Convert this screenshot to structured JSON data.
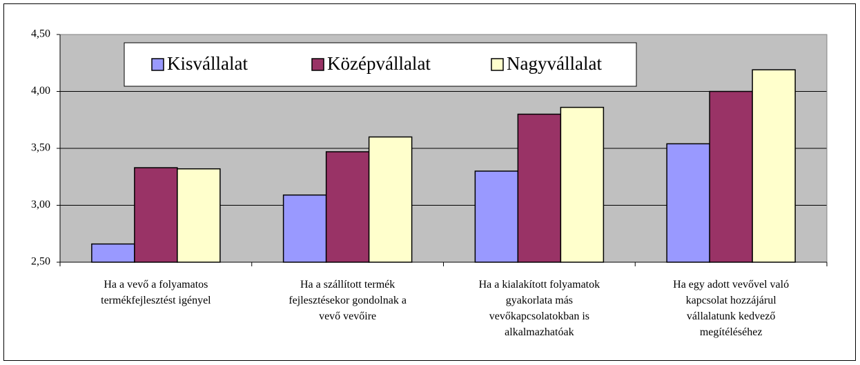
{
  "chart_data": {
    "type": "bar",
    "categories": [
      "Ha a vevő a folyamatos\ntermékfejlesztést igényel",
      "Ha a szállított termék\nfejlesztésekor gondolnak a\nvevő vevőire",
      "Ha a kialakított folyamatok\ngyakorlata más\nvevőkapcsolatokban is\nalkalmazhatóak",
      "Ha egy adott vevővel való\nkapcsolat hozzájárul\nvállalatunk kedvező\nmegítéléséhez"
    ],
    "series": [
      {
        "name": "Kisvállalat",
        "color": "#9999ff",
        "values": [
          2.66,
          3.09,
          3.3,
          3.54
        ]
      },
      {
        "name": "Középvállalat",
        "color": "#993366",
        "values": [
          3.33,
          3.47,
          3.8,
          4.0
        ]
      },
      {
        "name": "Nagyvállalat",
        "color": "#ffffcc",
        "values": [
          3.32,
          3.6,
          3.86,
          4.19
        ]
      }
    ],
    "ylim": [
      2.5,
      4.5
    ],
    "yticks": [
      {
        "value": 2.5,
        "label": "2,50"
      },
      {
        "value": 3.0,
        "label": "3,00"
      },
      {
        "value": 3.5,
        "label": "3,50"
      },
      {
        "value": 4.0,
        "label": "4,00"
      },
      {
        "value": 4.5,
        "label": "4,50"
      }
    ],
    "grid": true,
    "legend": "top"
  }
}
